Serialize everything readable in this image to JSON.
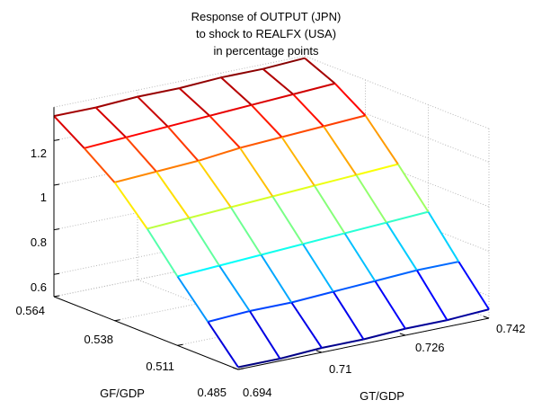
{
  "chart_data": {
    "type": "surface",
    "title_lines": [
      "Response of OUTPUT (JPN)",
      "to shock to REALFX (USA)",
      "in percentage points"
    ],
    "xlabel": "GT/GDP",
    "ylabel": "GF/GDP",
    "zlabel": "",
    "x_ticks": [
      "0.694",
      "0.71",
      "0.726",
      "0.742"
    ],
    "y_ticks": [
      "0.485",
      "0.511",
      "0.538",
      "0.564"
    ],
    "z_ticks": [
      "0.6",
      "0.8",
      "1",
      "1.2"
    ],
    "x": [
      0.694,
      0.702,
      0.71,
      0.718,
      0.726,
      0.734,
      0.742
    ],
    "y": [
      0.485,
      0.498,
      0.511,
      0.524,
      0.538,
      0.551,
      0.564
    ],
    "z_rows": [
      [
        0.51,
        0.51,
        0.52,
        0.52,
        0.53,
        0.53,
        0.54
      ],
      [
        0.66,
        0.67,
        0.67,
        0.68,
        0.69,
        0.7,
        0.7
      ],
      [
        0.81,
        0.82,
        0.83,
        0.84,
        0.85,
        0.86,
        0.87
      ],
      [
        0.97,
        0.98,
        0.99,
        1.0,
        1.01,
        1.02,
        1.03
      ],
      [
        1.12,
        1.13,
        1.14,
        1.16,
        1.17,
        1.18,
        1.19
      ],
      [
        1.22,
        1.23,
        1.24,
        1.25,
        1.26,
        1.27,
        1.28
      ],
      [
        1.31,
        1.31,
        1.32,
        1.32,
        1.33,
        1.33,
        1.34
      ]
    ],
    "xlim": [
      0.694,
      0.742
    ],
    "ylim": [
      0.485,
      0.564
    ],
    "zlim": [
      0.5,
      1.35
    ],
    "grid": true,
    "colormap": "jet"
  }
}
